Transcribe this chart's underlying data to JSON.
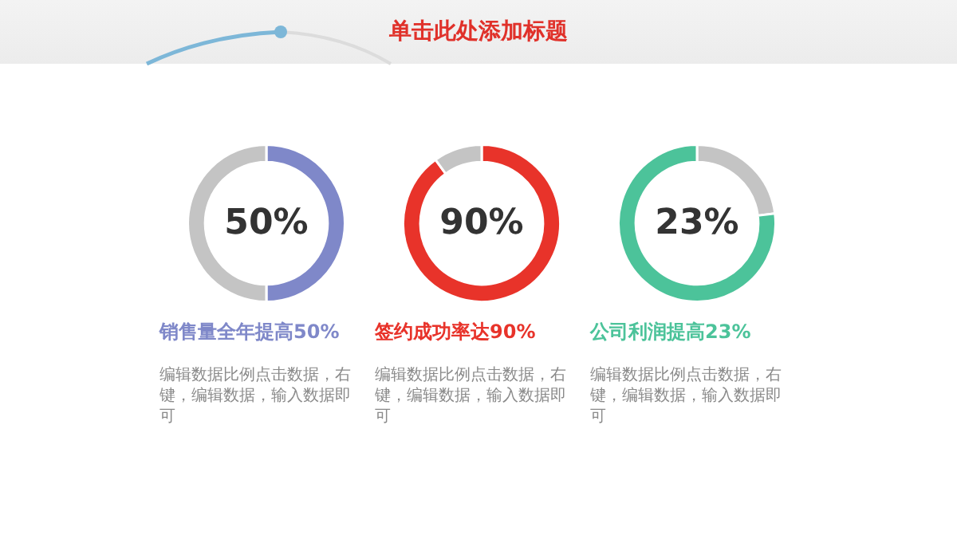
{
  "chart_data": [
    {
      "type": "other",
      "title": "单击此处添加标题"
    },
    {
      "type": "donut",
      "title": "销售量全年提高50%",
      "categories": [
        null,
        null
      ],
      "values": [
        50,
        50
      ],
      "colors": [
        "#7f88c9",
        "#c4c4c4"
      ],
      "annotations": [
        "50%",
        "编辑数据比例点击数据，右键，编辑数据，输入数据即可"
      ]
    },
    {
      "type": "donut",
      "title": "签约成功率达90%",
      "categories": [
        null,
        null
      ],
      "values": [
        90,
        10
      ],
      "colors": [
        "#e8332a",
        "#c4c4c4"
      ],
      "annotations": [
        "90%",
        "编辑数据比例点击数据，右键，编辑数据，输入数据即可"
      ]
    },
    {
      "type": "donut",
      "title": "公司利润提高23%",
      "categories": [
        null,
        null
      ],
      "values": [
        23,
        77
      ],
      "colors": [
        "#c4c4c4",
        "#4cc39a"
      ],
      "annotations": [
        "23%",
        "编辑数据比例点击数据，右键，编辑数据，输入数据即可"
      ]
    }
  ]
}
